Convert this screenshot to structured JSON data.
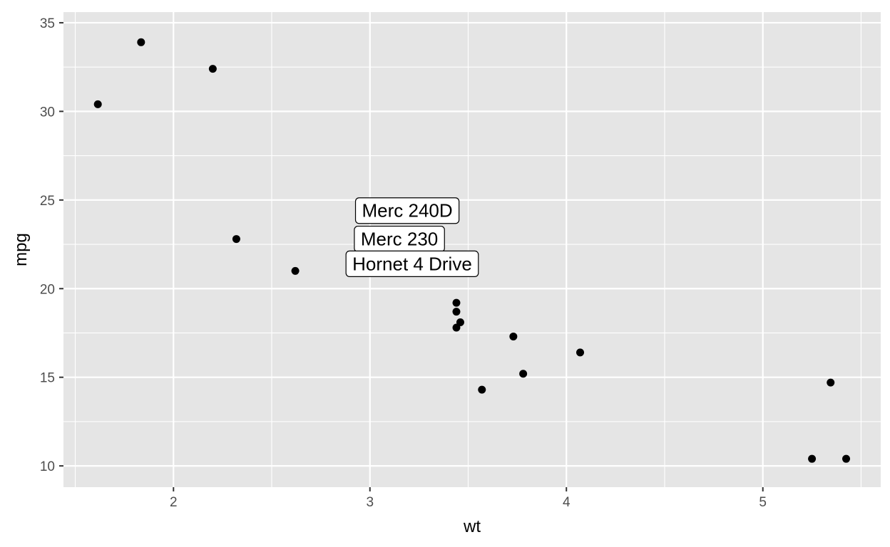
{
  "chart_data": {
    "type": "scatter",
    "xlabel": "wt",
    "ylabel": "mpg",
    "xlim": [
      1.44,
      5.6
    ],
    "ylim": [
      8.8,
      35.6
    ],
    "x_ticks": [
      2,
      3,
      4,
      5
    ],
    "x_tick_labels": [
      "2",
      "3",
      "4",
      "5"
    ],
    "y_ticks": [
      10,
      15,
      20,
      25,
      30,
      35
    ],
    "y_tick_labels": [
      "10",
      "15",
      "20",
      "25",
      "30",
      "35"
    ],
    "x_minor": [
      1.5,
      2.5,
      3.5,
      4.5,
      5.5
    ],
    "y_minor": [
      12.5,
      17.5,
      22.5,
      27.5,
      32.5
    ],
    "grid": true,
    "legend": "none",
    "points": [
      {
        "x": 1.615,
        "y": 30.4
      },
      {
        "x": 1.835,
        "y": 33.9
      },
      {
        "x": 2.2,
        "y": 32.4
      },
      {
        "x": 2.32,
        "y": 22.8
      },
      {
        "x": 2.62,
        "y": 21.0
      },
      {
        "x": 3.44,
        "y": 19.2
      },
      {
        "x": 3.44,
        "y": 18.7
      },
      {
        "x": 3.46,
        "y": 18.1
      },
      {
        "x": 3.44,
        "y": 17.8
      },
      {
        "x": 3.73,
        "y": 17.3
      },
      {
        "x": 4.07,
        "y": 16.4
      },
      {
        "x": 3.78,
        "y": 15.2
      },
      {
        "x": 3.57,
        "y": 14.3
      },
      {
        "x": 5.345,
        "y": 14.7
      },
      {
        "x": 5.25,
        "y": 10.4
      },
      {
        "x": 5.424,
        "y": 10.4
      }
    ],
    "labels": [
      {
        "text": "Merc 240D",
        "x": 3.19,
        "y": 24.4
      },
      {
        "text": "Merc 230",
        "x": 3.15,
        "y": 22.8
      },
      {
        "text": "Hornet 4 Drive",
        "x": 3.215,
        "y": 21.4
      }
    ],
    "colors": {
      "panel_background": "#e5e5e5",
      "grid": "#ffffff",
      "point": "#000000",
      "tick": "#333333"
    }
  }
}
